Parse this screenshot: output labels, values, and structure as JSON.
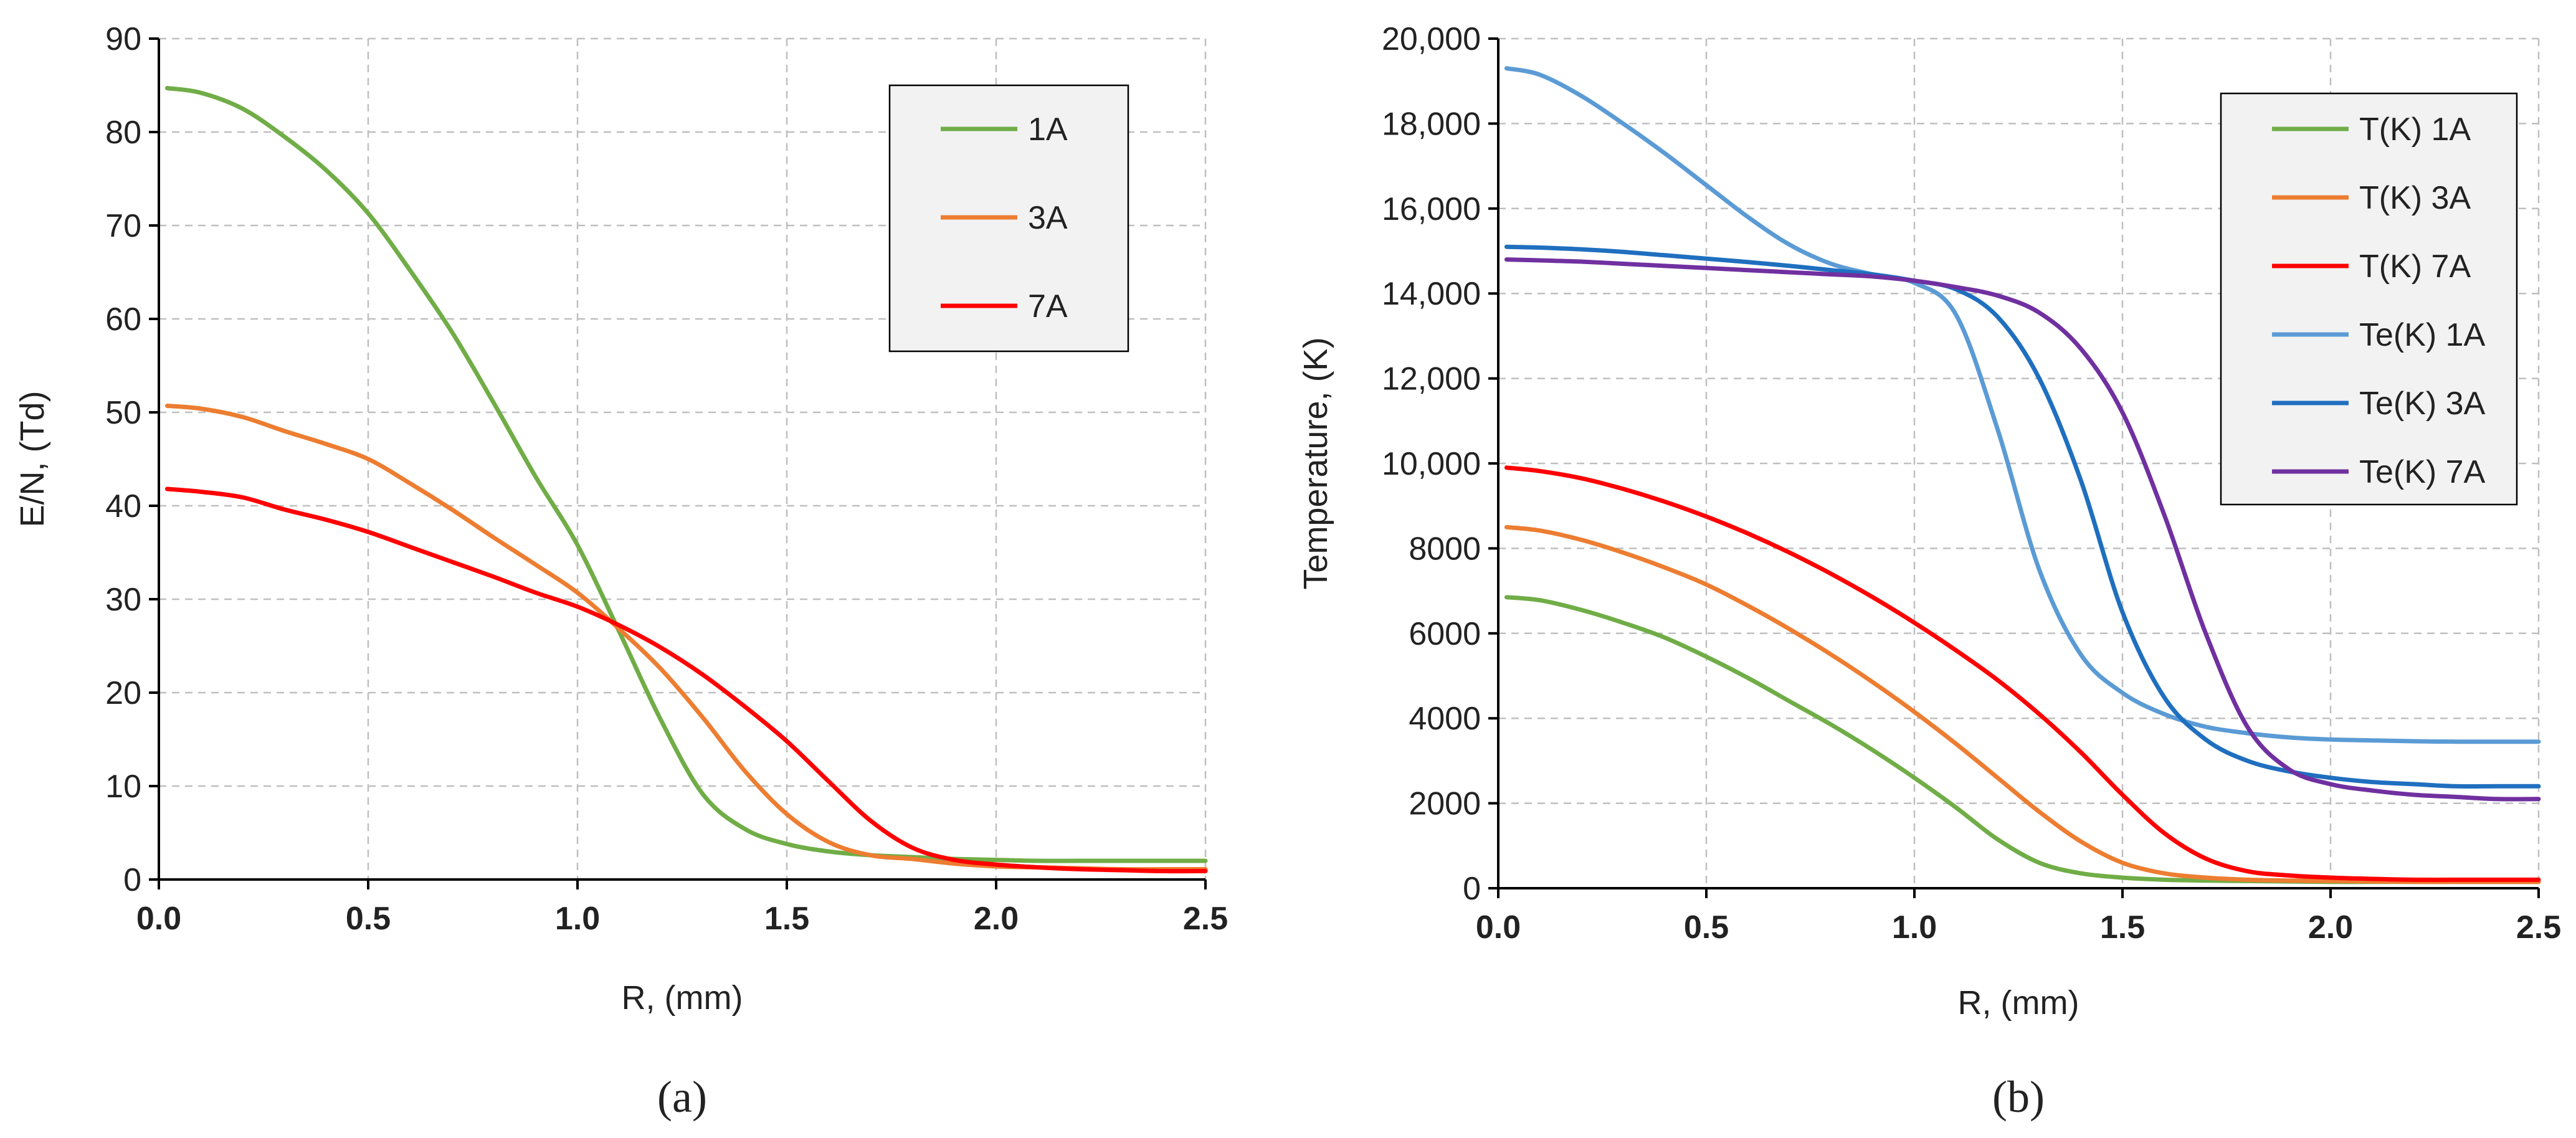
{
  "chart_data": [
    {
      "panel_label": "(a)",
      "type": "line",
      "title": "",
      "xlabel": "R, (mm)",
      "ylabel": "E/N, (Td)",
      "xlim": [
        0,
        2.5
      ],
      "ylim": [
        0,
        90
      ],
      "xticks": [
        "0.0",
        "0.5",
        "1.0",
        "1.5",
        "2.0",
        "2.5"
      ],
      "xtick_values": [
        0,
        0.5,
        1.0,
        1.5,
        2.0,
        2.5
      ],
      "yticks": [
        "0",
        "10",
        "20",
        "30",
        "40",
        "50",
        "60",
        "70",
        "80",
        "90"
      ],
      "ytick_values": [
        0,
        10,
        20,
        30,
        40,
        50,
        60,
        70,
        80,
        90
      ],
      "grid": true,
      "legend_position": "top-right",
      "x": [
        0.02,
        0.1,
        0.2,
        0.3,
        0.4,
        0.5,
        0.6,
        0.7,
        0.8,
        0.9,
        1.0,
        1.1,
        1.2,
        1.3,
        1.4,
        1.5,
        1.6,
        1.7,
        1.8,
        1.9,
        2.0,
        2.1,
        2.2,
        2.3,
        2.4,
        2.5
      ],
      "series": [
        {
          "name": "1A",
          "color": "#70ad47",
          "values": [
            84.7,
            84.2,
            82.5,
            79.5,
            75.9,
            71.3,
            65.2,
            58.6,
            51.0,
            43.1,
            35.8,
            26.5,
            17.0,
            9.1,
            5.4,
            3.8,
            3.0,
            2.6,
            2.4,
            2.2,
            2.1,
            2.0,
            2.0,
            2.0,
            2.0,
            2.0
          ]
        },
        {
          "name": "3A",
          "color": "#ed7d31",
          "values": [
            50.7,
            50.4,
            49.5,
            48.0,
            46.6,
            45.0,
            42.4,
            39.6,
            36.6,
            33.7,
            30.7,
            26.8,
            22.5,
            17.3,
            11.6,
            7.0,
            4.0,
            2.6,
            2.2,
            1.7,
            1.4,
            1.3,
            1.2,
            1.1,
            1.1,
            1.1
          ]
        },
        {
          "name": "7A",
          "color": "#ff0000",
          "values": [
            41.8,
            41.5,
            40.9,
            39.6,
            38.5,
            37.2,
            35.6,
            34.0,
            32.4,
            30.7,
            29.2,
            27.2,
            24.8,
            21.9,
            18.5,
            14.8,
            10.5,
            6.3,
            3.4,
            2.1,
            1.6,
            1.3,
            1.1,
            1.0,
            0.9,
            0.9
          ]
        }
      ]
    },
    {
      "panel_label": "(b)",
      "type": "line",
      "title": "",
      "xlabel": "R, (mm)",
      "ylabel": "Temperature, (K)",
      "xlim": [
        0,
        2.5
      ],
      "ylim": [
        0,
        20000
      ],
      "xticks": [
        "0.0",
        "0.5",
        "1.0",
        "1.5",
        "2.0",
        "2.5"
      ],
      "xtick_values": [
        0,
        0.5,
        1.0,
        1.5,
        2.0,
        2.5
      ],
      "yticks": [
        "0",
        "2000",
        "4000",
        "6000",
        "8000",
        "10,000",
        "12,000",
        "14,000",
        "16,000",
        "18,000",
        "20,000"
      ],
      "ytick_values": [
        0,
        2000,
        4000,
        6000,
        8000,
        10000,
        12000,
        14000,
        16000,
        18000,
        20000
      ],
      "grid": true,
      "legend_position": "top-right",
      "x": [
        0.02,
        0.1,
        0.2,
        0.3,
        0.4,
        0.5,
        0.6,
        0.7,
        0.8,
        0.9,
        1.0,
        1.1,
        1.2,
        1.3,
        1.4,
        1.5,
        1.6,
        1.7,
        1.8,
        1.9,
        2.0,
        2.1,
        2.2,
        2.3,
        2.4,
        2.5
      ],
      "series": [
        {
          "name": "T(K) 1A",
          "color": "#70ad47",
          "values": [
            6850,
            6780,
            6550,
            6250,
            5900,
            5450,
            4950,
            4400,
            3850,
            3250,
            2600,
            1900,
            1150,
            600,
            350,
            250,
            200,
            180,
            170,
            160,
            150,
            150,
            150,
            150,
            150,
            150
          ]
        },
        {
          "name": "T(K) 3A",
          "color": "#ed7d31",
          "values": [
            8500,
            8420,
            8200,
            7900,
            7550,
            7150,
            6650,
            6100,
            5500,
            4850,
            4150,
            3400,
            2600,
            1800,
            1100,
            600,
            350,
            250,
            200,
            180,
            170,
            160,
            150,
            150,
            150,
            150
          ]
        },
        {
          "name": "T(K) 7A",
          "color": "#ff0000",
          "values": [
            9900,
            9820,
            9650,
            9400,
            9100,
            8750,
            8350,
            7900,
            7400,
            6850,
            6250,
            5600,
            4900,
            4100,
            3200,
            2200,
            1300,
            700,
            400,
            300,
            250,
            220,
            200,
            200,
            200,
            200
          ]
        },
        {
          "name": "Te(K) 1A",
          "color": "#5b9bd5",
          "values": [
            19300,
            19150,
            18650,
            18000,
            17300,
            16550,
            15800,
            15150,
            14700,
            14450,
            14250,
            13500,
            10800,
            7500,
            5500,
            4600,
            4100,
            3800,
            3650,
            3550,
            3500,
            3480,
            3460,
            3450,
            3450,
            3450
          ]
        },
        {
          "name": "Te(K) 3A",
          "color": "#1f6fbf",
          "values": [
            15100,
            15080,
            15040,
            14980,
            14900,
            14820,
            14740,
            14650,
            14550,
            14450,
            14300,
            14100,
            13450,
            12000,
            9600,
            6500,
            4500,
            3500,
            3000,
            2750,
            2600,
            2500,
            2450,
            2400,
            2400,
            2400
          ]
        },
        {
          "name": "Te(K) 7A",
          "color": "#7030a0",
          "values": [
            14800,
            14780,
            14750,
            14700,
            14650,
            14600,
            14550,
            14500,
            14450,
            14400,
            14300,
            14150,
            13950,
            13550,
            12700,
            11200,
            8800,
            6000,
            3800,
            2800,
            2450,
            2300,
            2200,
            2150,
            2100,
            2100
          ]
        }
      ]
    }
  ]
}
